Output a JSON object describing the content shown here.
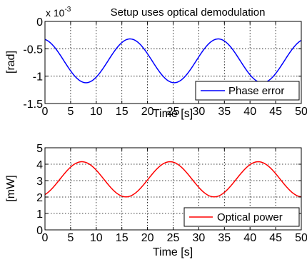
{
  "chart_data": [
    {
      "type": "line",
      "title": "Setup uses optical demodulation",
      "xlabel": "Time [s]",
      "ylabel": "[rad]",
      "y_exponent_label": "x 10",
      "y_exponent_power": "-3",
      "xlim": [
        0,
        50
      ],
      "ylim": [
        -1.5,
        0
      ],
      "xticks": [
        "0",
        "5",
        "10",
        "15",
        "20",
        "25",
        "30",
        "35",
        "40",
        "45",
        "50"
      ],
      "yticks": [
        "0",
        "-0.5",
        "-1",
        "-1.5"
      ],
      "ytick_values": [
        0,
        -0.5,
        -1,
        -1.5
      ],
      "grid": true,
      "legend_location": "bottom-right",
      "series": [
        {
          "name": "Phase error",
          "color": "#0000ff",
          "model": {
            "mean": -0.72,
            "amplitude": 0.4,
            "period": 17.2,
            "peak_time": 16.6
          }
        }
      ]
    },
    {
      "type": "line",
      "title": "",
      "xlabel": "Time [s]",
      "ylabel": "[mW]",
      "xlim": [
        0,
        50
      ],
      "ylim": [
        0,
        5
      ],
      "xticks": [
        "0",
        "5",
        "10",
        "15",
        "20",
        "25",
        "30",
        "35",
        "40",
        "45",
        "50"
      ],
      "yticks": [
        "0",
        "1",
        "2",
        "3",
        "4",
        "5"
      ],
      "ytick_values": [
        0,
        1,
        2,
        3,
        4,
        5
      ],
      "grid": true,
      "legend_location": "bottom-right",
      "series": [
        {
          "name": "Optical power",
          "color": "#ff0000",
          "model": {
            "mean": 3.08,
            "amplitude": 1.07,
            "period": 17.2,
            "peak_time": 7.2
          }
        }
      ]
    }
  ]
}
